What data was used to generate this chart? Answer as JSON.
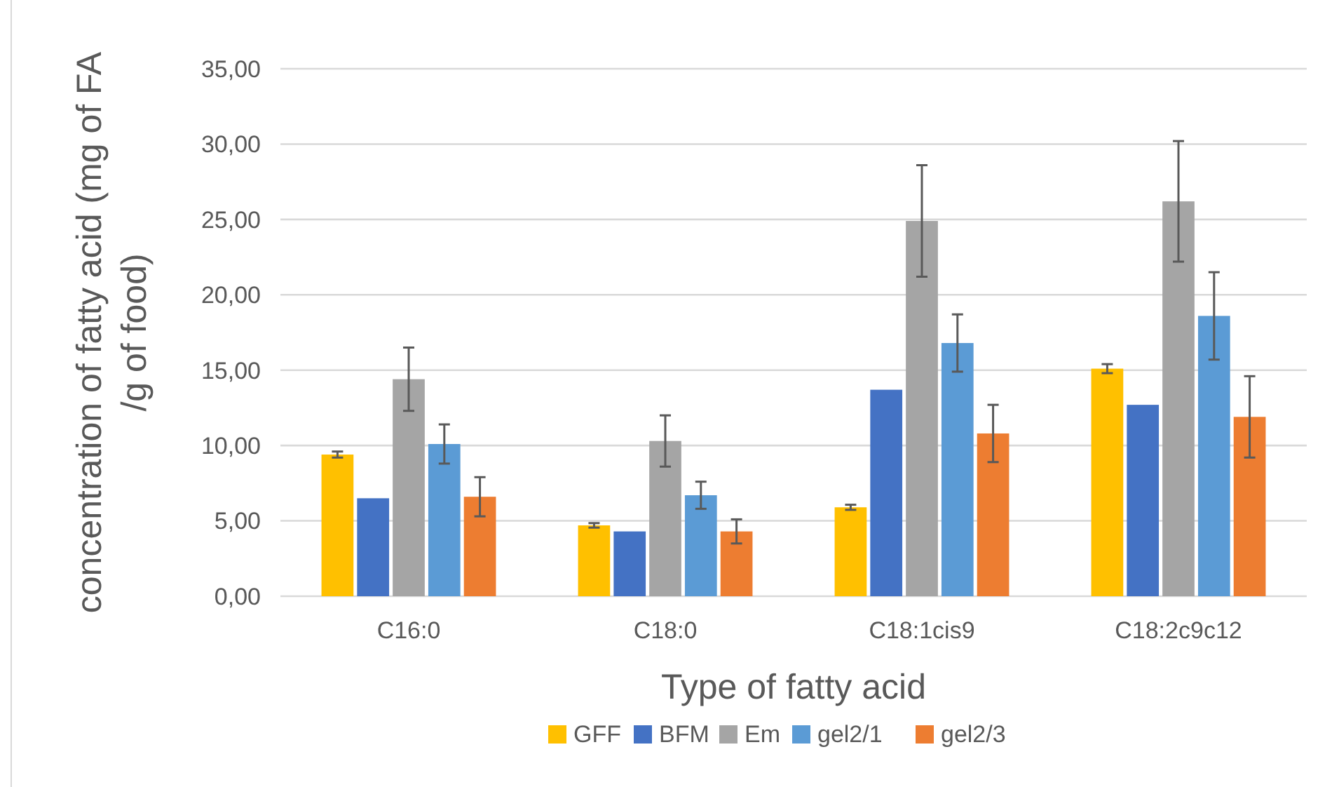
{
  "chart_data": {
    "type": "bar",
    "xlabel": "Type of fatty acid",
    "ylabel": "concentration of fatty acid (mg of FA /g of food)",
    "categories": [
      "C16:0",
      "C18:0",
      "C18:1cis9",
      "C18:2c9c12"
    ],
    "series": [
      {
        "name": "GFF",
        "color": "#ffc000",
        "values": [
          9.4,
          4.7,
          5.9,
          15.1
        ],
        "errors": [
          0.2,
          0.15,
          0.17,
          0.3
        ]
      },
      {
        "name": "BFM",
        "color": "#4472c4",
        "values": [
          6.5,
          4.3,
          13.7,
          12.7
        ]
      },
      {
        "name": "Em",
        "color": "#a5a5a5",
        "values": [
          14.4,
          10.3,
          24.9,
          26.2
        ],
        "errors": [
          2.1,
          1.7,
          3.7,
          4.0
        ]
      },
      {
        "name": "gel2/1",
        "color": "#5b9bd5",
        "values": [
          10.1,
          6.7,
          16.8,
          18.6
        ],
        "errors": [
          1.3,
          0.9,
          1.9,
          2.9
        ]
      },
      {
        "name": "gel2/3",
        "color": "#ed7d31",
        "values": [
          6.6,
          4.3,
          10.8,
          11.9
        ],
        "errors": [
          1.3,
          0.8,
          1.9,
          2.7
        ]
      }
    ],
    "ylim": [
      0,
      35
    ],
    "yticks": [
      {
        "value": 0,
        "label": "0,00"
      },
      {
        "value": 5,
        "label": "5,00"
      },
      {
        "value": 10,
        "label": "10,00"
      },
      {
        "value": 15,
        "label": "15,00"
      },
      {
        "value": 20,
        "label": "20,00"
      },
      {
        "value": 25,
        "label": "25,00"
      },
      {
        "value": 30,
        "label": "30,00"
      },
      {
        "value": 35,
        "label": "35,00"
      }
    ],
    "grid": "y",
    "legend": "bottom"
  }
}
